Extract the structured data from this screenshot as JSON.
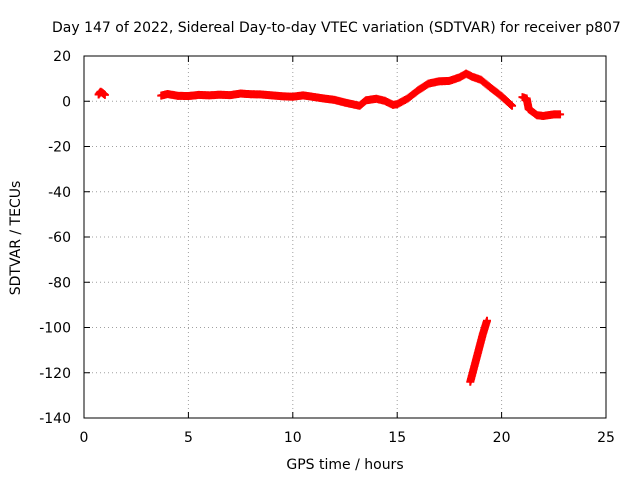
{
  "chart_data": {
    "type": "scatter",
    "title": "Day 147 of 2022, Sidereal Day-to-day VTEC variation (SDTVAR) for receiver p807",
    "xlabel": "GPS time / hours",
    "ylabel": "SDTVAR / TECUs",
    "xlim": [
      0,
      25
    ],
    "ylim": [
      -140,
      20
    ],
    "xticks": [
      0,
      5,
      10,
      15,
      20,
      25
    ],
    "yticks": [
      20,
      0,
      -20,
      -40,
      -60,
      -80,
      -100,
      -120,
      -140
    ],
    "grid": true,
    "marker": "+",
    "color": "#ff0000",
    "series": [
      {
        "name": "SDTVAR",
        "segments": [
          [
            [
              0.7,
              3.0
            ],
            [
              0.8,
              4.2
            ],
            [
              0.9,
              3.6
            ],
            [
              1.0,
              2.8
            ]
          ],
          [
            [
              3.7,
              2.5
            ],
            [
              4.0,
              3.2
            ],
            [
              4.5,
              2.4
            ],
            [
              5.0,
              2.3
            ],
            [
              5.5,
              2.8
            ],
            [
              6.0,
              2.6
            ],
            [
              6.5,
              2.9
            ],
            [
              7.0,
              2.7
            ],
            [
              7.5,
              3.4
            ],
            [
              8.0,
              3.1
            ],
            [
              8.5,
              3.0
            ],
            [
              9.0,
              2.6
            ],
            [
              9.5,
              2.2
            ],
            [
              10.0,
              2.0
            ],
            [
              10.5,
              2.6
            ],
            [
              11.0,
              1.9
            ],
            [
              11.5,
              1.2
            ],
            [
              12.0,
              0.6
            ],
            [
              12.5,
              -0.6
            ],
            [
              13.0,
              -1.6
            ],
            [
              13.2,
              -2.0
            ],
            [
              13.5,
              0.4
            ],
            [
              14.0,
              1.1
            ],
            [
              14.4,
              0.2
            ],
            [
              14.8,
              -1.6
            ],
            [
              15.0,
              -1.3
            ],
            [
              15.5,
              1.2
            ],
            [
              16.0,
              4.8
            ],
            [
              16.5,
              7.8
            ],
            [
              17.0,
              8.8
            ],
            [
              17.5,
              9.0
            ],
            [
              18.0,
              10.6
            ],
            [
              18.3,
              12.2
            ],
            [
              18.6,
              10.8
            ],
            [
              19.0,
              9.5
            ],
            [
              19.5,
              5.8
            ],
            [
              20.0,
              2.2
            ],
            [
              20.4,
              -1.2
            ],
            [
              20.5,
              -2.0
            ]
          ],
          [
            [
              21.0,
              1.8
            ],
            [
              21.2,
              1.2
            ],
            [
              21.3,
              -3.5
            ],
            [
              21.5,
              -4.8
            ],
            [
              21.7,
              -6.2
            ],
            [
              22.0,
              -6.5
            ],
            [
              22.5,
              -5.8
            ],
            [
              22.8,
              -5.8
            ]
          ],
          [
            [
              18.5,
              -124.0
            ],
            [
              18.7,
              -117.0
            ],
            [
              18.9,
              -110.0
            ],
            [
              19.1,
              -103.0
            ],
            [
              19.3,
              -97.0
            ]
          ]
        ]
      }
    ]
  }
}
